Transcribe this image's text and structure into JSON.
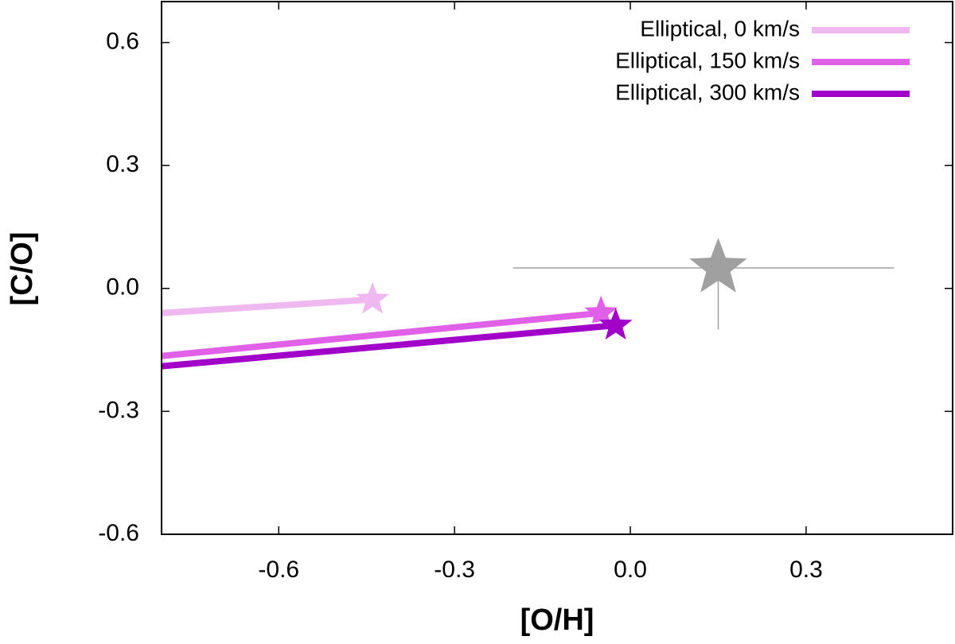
{
  "chart_data": {
    "type": "line",
    "xlabel": "[O/H]",
    "ylabel": "[C/O]",
    "xlim": [
      -0.8,
      0.55
    ],
    "ylim": [
      -0.6,
      0.7
    ],
    "xticks": [
      {
        "value": -0.6,
        "label": "-0.6"
      },
      {
        "value": -0.3,
        "label": "-0.3"
      },
      {
        "value": 0,
        "label": "0.0"
      },
      {
        "value": 0.3,
        "label": "0.3"
      }
    ],
    "yticks": [
      {
        "value": -0.6,
        "label": "-0.6"
      },
      {
        "value": -0.3,
        "label": "-0.3"
      },
      {
        "value": 0,
        "label": "0.0"
      },
      {
        "value": 0.3,
        "label": "0.3"
      },
      {
        "value": 0.6,
        "label": "0.6"
      }
    ],
    "legend": "upper right",
    "series": [
      {
        "name": "Elliptical, 0 km/s",
        "color": "#f0b8f0",
        "x": [
          -0.8,
          -0.44
        ],
        "values": [
          -0.06,
          -0.027
        ]
      },
      {
        "name": "Elliptical, 150 km/s",
        "color": "#e060e8",
        "x": [
          -0.8,
          -0.05
        ],
        "values": [
          -0.165,
          -0.06
        ]
      },
      {
        "name": "Elliptical, 300 km/s",
        "color": "#a000c8",
        "x": [
          -0.8,
          -0.025
        ],
        "values": [
          -0.19,
          -0.09
        ]
      }
    ],
    "reference": {
      "color": "#a0a0a0",
      "x": 0.15,
      "y": 0.05,
      "xerr": [
        0.35,
        0.3
      ],
      "yerr": [
        0.15,
        0.05
      ]
    }
  }
}
